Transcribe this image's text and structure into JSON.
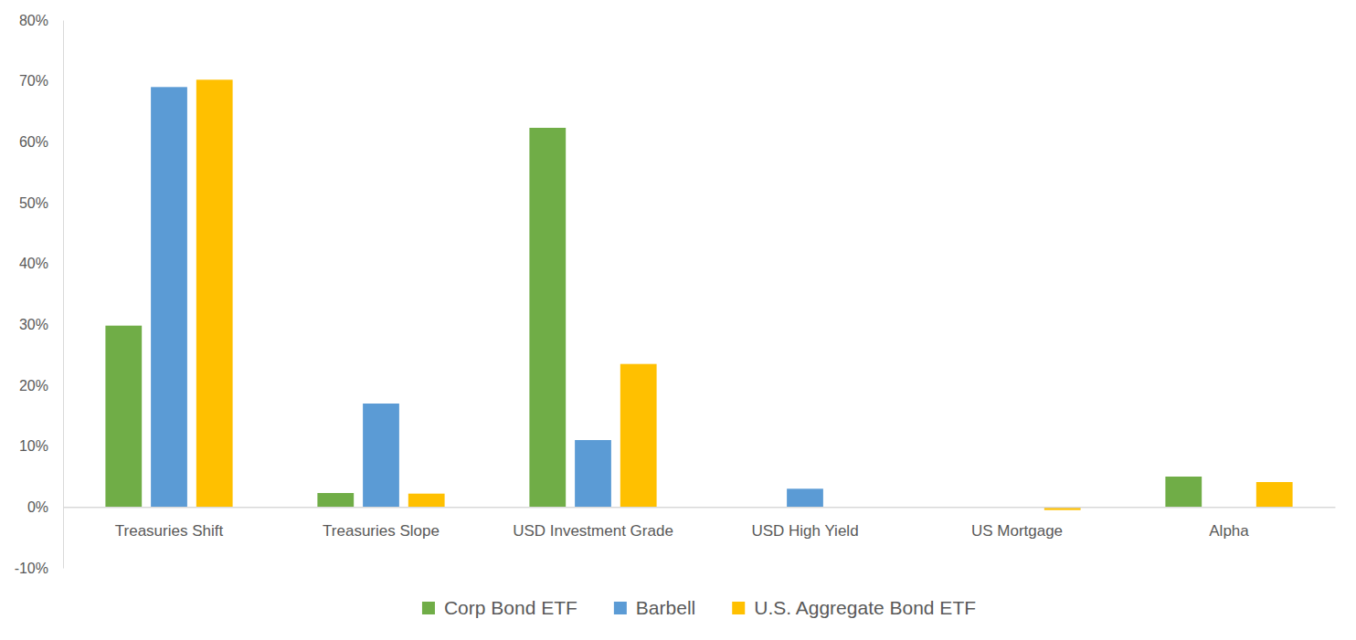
{
  "chart_data": {
    "type": "bar",
    "categories": [
      "Treasuries Shift",
      "Treasuries Slope",
      "USD Investment Grade",
      "USD High Yield",
      "US Mortgage",
      "Alpha"
    ],
    "series": [
      {
        "name": "Corp Bond ETF",
        "color": "#70ad47",
        "values": [
          29.8,
          2.3,
          62.3,
          0,
          0,
          5.0
        ]
      },
      {
        "name": "Barbell",
        "color": "#5b9bd5",
        "values": [
          69.0,
          17.0,
          11.0,
          3.0,
          0,
          0
        ]
      },
      {
        "name": "U.S. Aggregate Bond ETF",
        "color": "#ffc000",
        "values": [
          70.2,
          2.2,
          23.5,
          0,
          -0.5,
          4.1
        ]
      }
    ],
    "ylim": [
      -10,
      80
    ],
    "yticks": [
      {
        "value": -10,
        "label": "-10%"
      },
      {
        "value": 0,
        "label": "0%"
      },
      {
        "value": 10,
        "label": "10%"
      },
      {
        "value": 20,
        "label": "20%"
      },
      {
        "value": 30,
        "label": "30%"
      },
      {
        "value": 40,
        "label": "40%"
      },
      {
        "value": 50,
        "label": "50%"
      },
      {
        "value": 60,
        "label": "60%"
      },
      {
        "value": 70,
        "label": "70%"
      },
      {
        "value": 80,
        "label": "80%"
      }
    ],
    "grid": false,
    "legend": "bottom"
  }
}
